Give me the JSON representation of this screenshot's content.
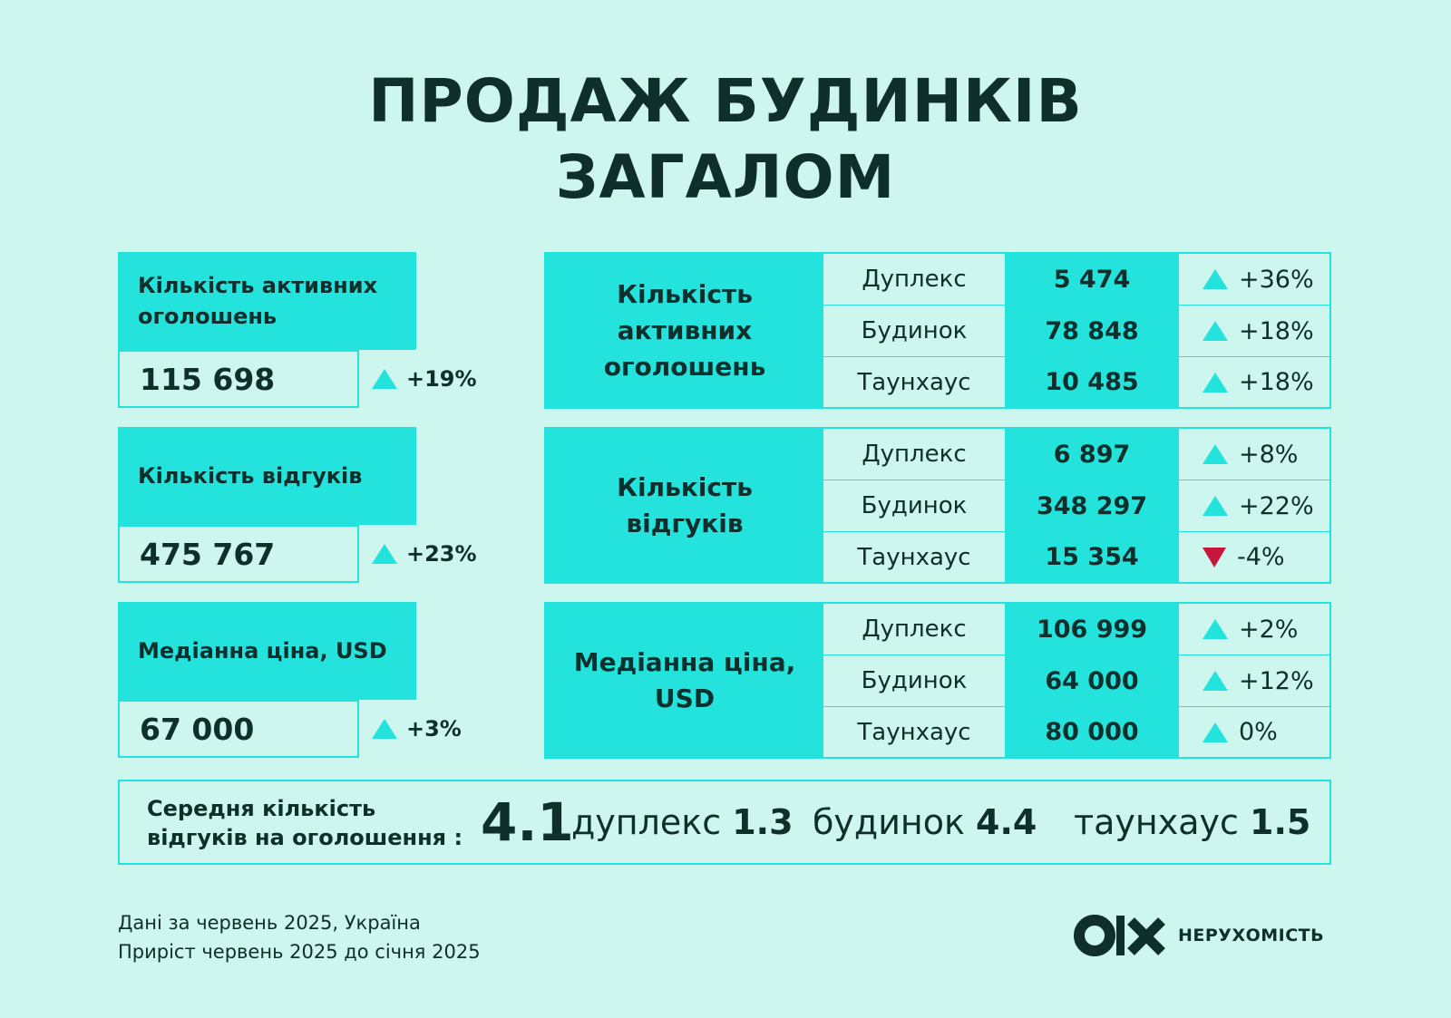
{
  "title": {
    "line1": "ПРОДАЖ БУДИНКІВ",
    "line2": "ЗАГАЛОМ"
  },
  "summary": [
    {
      "label": "Кількість активних оголошень",
      "value": "115 698",
      "change": "+19%",
      "direction": "up"
    },
    {
      "label": "Кількість відгуків",
      "value": "475 767",
      "change": "+23%",
      "direction": "up"
    },
    {
      "label": "Медіанна ціна, USD",
      "value": "67 000",
      "change": "+3%",
      "direction": "up"
    }
  ],
  "tables": [
    {
      "label": "Кількість активних оголошень",
      "rows": [
        {
          "type": "Дуплекс",
          "value": "5 474",
          "change": "+36%",
          "direction": "up"
        },
        {
          "type": "Будинок",
          "value": "78 848",
          "change": "+18%",
          "direction": "up"
        },
        {
          "type": "Таунхаус",
          "value": "10 485",
          "change": "+18%",
          "direction": "up"
        }
      ]
    },
    {
      "label": "Кількість відгуків",
      "rows": [
        {
          "type": "Дуплекс",
          "value": "6 897",
          "change": "+8%",
          "direction": "up"
        },
        {
          "type": "Будинок",
          "value": "348 297",
          "change": "+22%",
          "direction": "up"
        },
        {
          "type": "Таунхаус",
          "value": "15 354",
          "change": "-4%",
          "direction": "down"
        }
      ]
    },
    {
      "label": "Медіанна ціна, USD",
      "rows": [
        {
          "type": "Дуплекс",
          "value": "106 999",
          "change": "+2%",
          "direction": "up"
        },
        {
          "type": "Будинок",
          "value": "64 000",
          "change": "+12%",
          "direction": "up"
        },
        {
          "type": "Таунхаус",
          "value": "80 000",
          "change": "0%",
          "direction": "up"
        }
      ]
    }
  ],
  "average": {
    "label_line1": "Середня кількість",
    "label_line2": "відгуків на оголошення :",
    "total": "4.1",
    "items": [
      {
        "name": "дуплекс",
        "value": "1.3"
      },
      {
        "name": "будинок",
        "value": "4.4"
      },
      {
        "name": "таунхаус",
        "value": "1.5"
      }
    ]
  },
  "footer": {
    "line1": "Дані за червень 2025, Україна",
    "line2": "Приріст червень 2025 до січня 2025"
  },
  "brand": {
    "logo": "olx-logo",
    "text": "НЕРУХОМІСТЬ"
  },
  "colors": {
    "background": "#cdf6ee",
    "accent": "#24e3dd",
    "text": "#0f2f2c",
    "down": "#c8173d"
  }
}
